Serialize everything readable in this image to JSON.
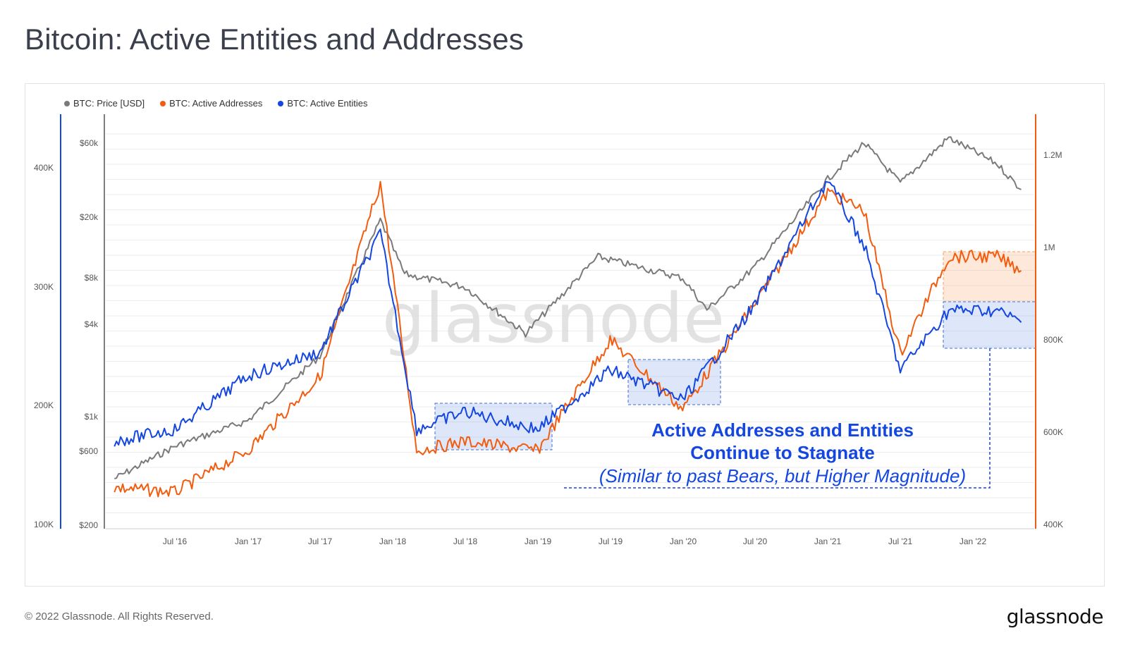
{
  "header": {
    "title": "Bitcoin: Active Entities and Addresses"
  },
  "footer": {
    "copyright": "© 2022 Glassnode. All Rights Reserved.",
    "logo": "glassnode"
  },
  "watermark": "glassnode",
  "annotation": {
    "line1": "Active Addresses and Entities",
    "line2": "Continue to Stagnate",
    "line3": "(Similar to past Bears, but Higher Magnitude)"
  },
  "colors": {
    "price": "#7a7a7a",
    "addresses": "#f25c0f",
    "entities": "#1446e0",
    "annotation": "#1446e0"
  },
  "chart_data": {
    "type": "line",
    "title": "Bitcoin: Active Entities and Addresses",
    "legend": {
      "placement": "top-left"
    },
    "x_ticks": [
      "Jul '16",
      "Jan '17",
      "Jul '17",
      "Jan '18",
      "Jul '18",
      "Jan '19",
      "Jul '19",
      "Jan '20",
      "Jul '20",
      "Jan '21",
      "Jul '21",
      "Jan '22"
    ],
    "left_axis_entities": {
      "ticks": [
        "400K",
        "300K",
        "200K",
        "100K"
      ],
      "range": [
        100000,
        420000
      ]
    },
    "price_axis": {
      "scale": "log",
      "ticks": [
        "$60k",
        "$20k",
        "$8k",
        "$4k",
        "$1k",
        "$600",
        "$200"
      ],
      "range": [
        200,
        80000
      ]
    },
    "right_axis_addresses": {
      "ticks": [
        "1.2M",
        "1M",
        "800K",
        "600K",
        "400K"
      ],
      "range": [
        400000,
        1200000
      ]
    },
    "series": [
      {
        "name": "BTC: Price [USD]",
        "axis": "price",
        "x": [
          "Feb '16",
          "Jul '16",
          "Jan '17",
          "Jul '17",
          "Dec '17",
          "Feb '18",
          "Jul '18",
          "Dec '18",
          "Jun '19",
          "Jan '20",
          "Mar '20",
          "Jul '20",
          "Jan '21",
          "Apr '21",
          "Jul '21",
          "Nov '21",
          "Mar '22",
          "May '22"
        ],
        "values": [
          400,
          650,
          950,
          2500,
          19000,
          8500,
          7000,
          3500,
          11000,
          8000,
          5000,
          9500,
          35000,
          60000,
          33000,
          65000,
          44000,
          30000
        ]
      },
      {
        "name": "BTC: Active Addresses",
        "axis": "addresses",
        "x": [
          "Feb '16",
          "Jul '16",
          "Jan '17",
          "Jul '17",
          "Dec '17",
          "Mar '18",
          "Jul '18",
          "Jan '19",
          "Jul '19",
          "Jan '20",
          "Jul '20",
          "Jan '21",
          "Apr '21",
          "Jul '21",
          "Nov '21",
          "Mar '22",
          "May '22"
        ],
        "values": [
          480000,
          470000,
          560000,
          720000,
          1140000,
          560000,
          580000,
          560000,
          800000,
          650000,
          880000,
          1120000,
          1080000,
          770000,
          980000,
          980000,
          950000
        ]
      },
      {
        "name": "BTC: Active Entities",
        "axis": "entities",
        "x": [
          "Feb '16",
          "Jul '16",
          "Jan '17",
          "Jul '17",
          "Dec '17",
          "Mar '18",
          "Jul '18",
          "Jan '19",
          "Jul '19",
          "Jan '20",
          "Jul '20",
          "Jan '21",
          "Apr '21",
          "Jul '21",
          "Nov '21",
          "Mar '22",
          "May '22"
        ],
        "values": [
          170000,
          180000,
          225000,
          245000,
          345000,
          180000,
          195000,
          180000,
          230000,
          205000,
          285000,
          390000,
          335000,
          230000,
          280000,
          280000,
          270000
        ]
      }
    ]
  }
}
